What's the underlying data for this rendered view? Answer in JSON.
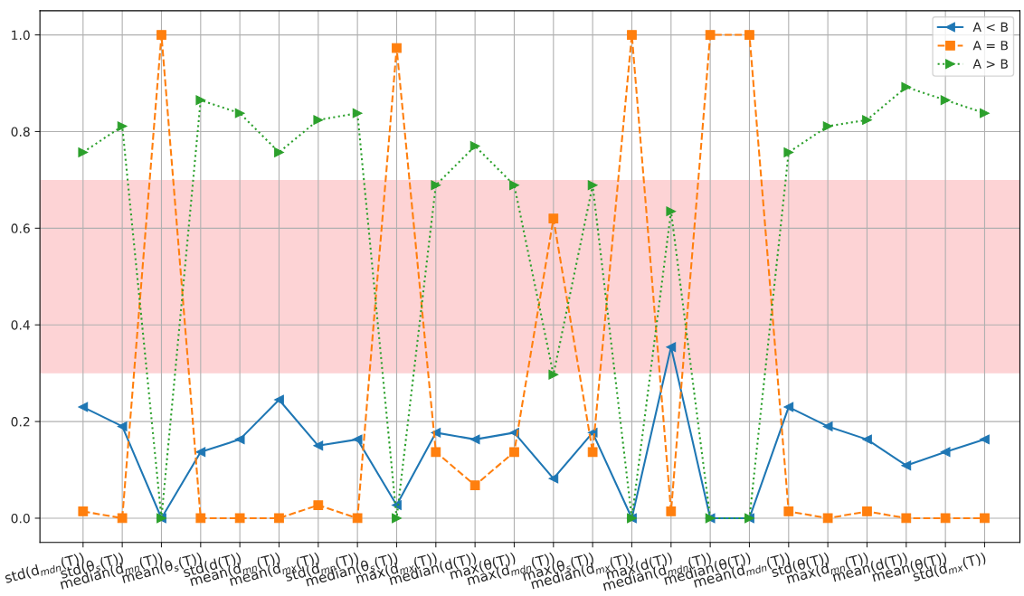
{
  "chart_data": {
    "type": "line",
    "categories": [
      "std(d$_{mdn}$(T))",
      "std(θ$_{s}$(T))",
      "median(d$_{mn}$(T))",
      "mean(θ$_{s}$(T))",
      "std(d(T))",
      "mean(d$_{mn}$(T))",
      "mean(d$_{mx}$(T))",
      "std(d$_{mn}$(T))",
      "median(θ$_{s}$(T))",
      "max(d$_{mx}$(T))",
      "median(d(T))",
      "max(θ(T))",
      "max(d$_{mdn}$(T))",
      "max(θ$_{s}$(T))",
      "median(d$_{mx}$(T))",
      "max(d(T))",
      "median(d$_{mdn}$(T))",
      "median(θ(T))",
      "mean(d$_{mdn}$(T))",
      "std(θ(T))",
      "max(d$_{mn}$(T))",
      "mean(d(T))",
      "mean(θ(T))",
      "std(d$_{mx}$(T))"
    ],
    "series": [
      {
        "name": "A < B",
        "color": "#1f77b4",
        "marker": "triangle_left",
        "line_style": "solid",
        "values": [
          0.23,
          0.19,
          0.0,
          0.137,
          0.163,
          0.245,
          0.15,
          0.163,
          0.027,
          0.177,
          0.163,
          0.177,
          0.082,
          0.177,
          0.0,
          0.354,
          0.0,
          0.0,
          0.23,
          0.19,
          0.163,
          0.109,
          0.137,
          0.163
        ]
      },
      {
        "name": "A = B",
        "color": "#ff7f0e",
        "marker": "square",
        "line_style": "dashed",
        "values": [
          0.014,
          0.0,
          1.0,
          0.0,
          0.0,
          0.0,
          0.027,
          0.0,
          0.973,
          0.137,
          0.068,
          0.137,
          0.62,
          0.137,
          1.0,
          0.014,
          1.0,
          1.0,
          0.014,
          0.0,
          0.014,
          0.0,
          0.0,
          0.0
        ]
      },
      {
        "name": "A > B",
        "color": "#2ca02c",
        "marker": "triangle_right",
        "line_style": "dotted",
        "values": [
          0.757,
          0.811,
          0.0,
          0.865,
          0.838,
          0.757,
          0.824,
          0.838,
          0.0,
          0.689,
          0.77,
          0.689,
          0.297,
          0.689,
          0.0,
          0.635,
          0.0,
          0.0,
          0.757,
          0.811,
          0.824,
          0.892,
          0.865,
          0.838
        ]
      }
    ],
    "ylim": [
      -0.05,
      1.05
    ],
    "yticks": [
      {
        "value": 0,
        "label": "0.0"
      },
      {
        "value": 0.2,
        "label": "0.2"
      },
      {
        "value": 0.4,
        "label": "0.4"
      },
      {
        "value": 0.6,
        "label": "0.6"
      },
      {
        "value": 0.8,
        "label": "0.8"
      },
      {
        "value": 1,
        "label": "1.0"
      }
    ],
    "bands": [
      {
        "axis": "y",
        "from": 0.3,
        "to": 0.7,
        "color": "#fdd3d5"
      }
    ],
    "grid": true,
    "legend": "top right"
  }
}
